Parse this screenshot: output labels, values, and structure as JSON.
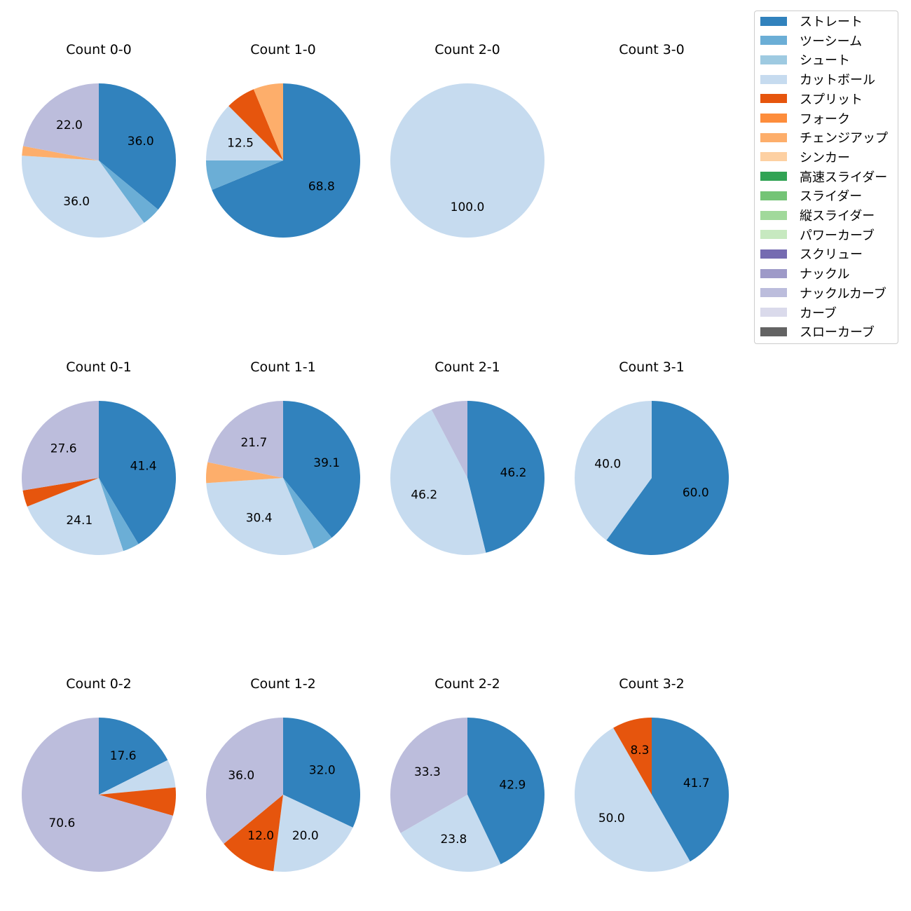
{
  "chart_data": {
    "type": "pie",
    "title": "",
    "legend_position": "top-right",
    "pitch_types": [
      {
        "name": "ストレート",
        "color": "#3182bd"
      },
      {
        "name": "ツーシーム",
        "color": "#6baed6"
      },
      {
        "name": "シュート",
        "color": "#9ecae1"
      },
      {
        "name": "カットボール",
        "color": "#c6dbef"
      },
      {
        "name": "スプリット",
        "color": "#e6550d"
      },
      {
        "name": "フォーク",
        "color": "#fd8d3c"
      },
      {
        "name": "チェンジアップ",
        "color": "#fdae6b"
      },
      {
        "name": "シンカー",
        "color": "#fdd0a2"
      },
      {
        "name": "高速スライダー",
        "color": "#31a354"
      },
      {
        "name": "スライダー",
        "color": "#74c476"
      },
      {
        "name": "縦スライダー",
        "color": "#a1d99b"
      },
      {
        "name": "パワーカーブ",
        "color": "#c7e9c0"
      },
      {
        "name": "スクリュー",
        "color": "#756bb1"
      },
      {
        "name": "ナックル",
        "color": "#9e9ac8"
      },
      {
        "name": "ナックルカーブ",
        "color": "#bcbddc"
      },
      {
        "name": "カーブ",
        "color": "#dadaeb"
      },
      {
        "name": "スローカーブ",
        "color": "#636363"
      }
    ],
    "charts": [
      {
        "title": "Count 0-0",
        "slices": [
          {
            "type": "ストレート",
            "value": 36.0,
            "label": "36.0"
          },
          {
            "type": "ツーシーム",
            "value": 4.0,
            "label": ""
          },
          {
            "type": "カットボール",
            "value": 36.0,
            "label": "36.0"
          },
          {
            "type": "チェンジアップ",
            "value": 2.0,
            "label": ""
          },
          {
            "type": "ナックルカーブ",
            "value": 22.0,
            "label": "22.0"
          }
        ]
      },
      {
        "title": "Count 1-0",
        "slices": [
          {
            "type": "ストレート",
            "value": 68.8,
            "label": "68.8"
          },
          {
            "type": "ツーシーム",
            "value": 6.25,
            "label": ""
          },
          {
            "type": "カットボール",
            "value": 12.5,
            "label": "12.5"
          },
          {
            "type": "スプリット",
            "value": 6.25,
            "label": ""
          },
          {
            "type": "チェンジアップ",
            "value": 6.25,
            "label": ""
          }
        ]
      },
      {
        "title": "Count 2-0",
        "slices": [
          {
            "type": "カットボール",
            "value": 100.0,
            "label": "100.0"
          }
        ]
      },
      {
        "title": "Count 3-0",
        "slices": []
      },
      {
        "title": "Count 0-1",
        "slices": [
          {
            "type": "ストレート",
            "value": 41.4,
            "label": "41.4"
          },
          {
            "type": "ツーシーム",
            "value": 3.45,
            "label": ""
          },
          {
            "type": "カットボール",
            "value": 24.1,
            "label": "24.1"
          },
          {
            "type": "スプリット",
            "value": 3.45,
            "label": ""
          },
          {
            "type": "ナックルカーブ",
            "value": 27.6,
            "label": "27.6"
          }
        ]
      },
      {
        "title": "Count 1-1",
        "slices": [
          {
            "type": "ストレート",
            "value": 39.1,
            "label": "39.1"
          },
          {
            "type": "ツーシーム",
            "value": 4.35,
            "label": ""
          },
          {
            "type": "カットボール",
            "value": 30.4,
            "label": "30.4"
          },
          {
            "type": "チェンジアップ",
            "value": 4.35,
            "label": ""
          },
          {
            "type": "ナックルカーブ",
            "value": 21.7,
            "label": "21.7"
          }
        ]
      },
      {
        "title": "Count 2-1",
        "slices": [
          {
            "type": "ストレート",
            "value": 46.2,
            "label": "46.2"
          },
          {
            "type": "カットボール",
            "value": 46.2,
            "label": "46.2"
          },
          {
            "type": "ナックルカーブ",
            "value": 7.7,
            "label": ""
          }
        ]
      },
      {
        "title": "Count 3-1",
        "slices": [
          {
            "type": "ストレート",
            "value": 60.0,
            "label": "60.0"
          },
          {
            "type": "カットボール",
            "value": 40.0,
            "label": "40.0"
          }
        ]
      },
      {
        "title": "Count 0-2",
        "slices": [
          {
            "type": "ストレート",
            "value": 17.6,
            "label": "17.6"
          },
          {
            "type": "カットボール",
            "value": 5.9,
            "label": ""
          },
          {
            "type": "スプリット",
            "value": 5.9,
            "label": ""
          },
          {
            "type": "ナックルカーブ",
            "value": 70.6,
            "label": "70.6"
          }
        ]
      },
      {
        "title": "Count 1-2",
        "slices": [
          {
            "type": "ストレート",
            "value": 32.0,
            "label": "32.0"
          },
          {
            "type": "カットボール",
            "value": 20.0,
            "label": "20.0"
          },
          {
            "type": "スプリット",
            "value": 12.0,
            "label": "12.0"
          },
          {
            "type": "ナックルカーブ",
            "value": 36.0,
            "label": "36.0"
          }
        ]
      },
      {
        "title": "Count 2-2",
        "slices": [
          {
            "type": "ストレート",
            "value": 42.9,
            "label": "42.9"
          },
          {
            "type": "カットボール",
            "value": 23.8,
            "label": "23.8"
          },
          {
            "type": "ナックルカーブ",
            "value": 33.3,
            "label": "33.3"
          }
        ]
      },
      {
        "title": "Count 3-2",
        "slices": [
          {
            "type": "ストレート",
            "value": 41.7,
            "label": "41.7"
          },
          {
            "type": "カットボール",
            "value": 50.0,
            "label": "50.0"
          },
          {
            "type": "スプリット",
            "value": 8.3,
            "label": "8.3"
          }
        ]
      }
    ]
  }
}
